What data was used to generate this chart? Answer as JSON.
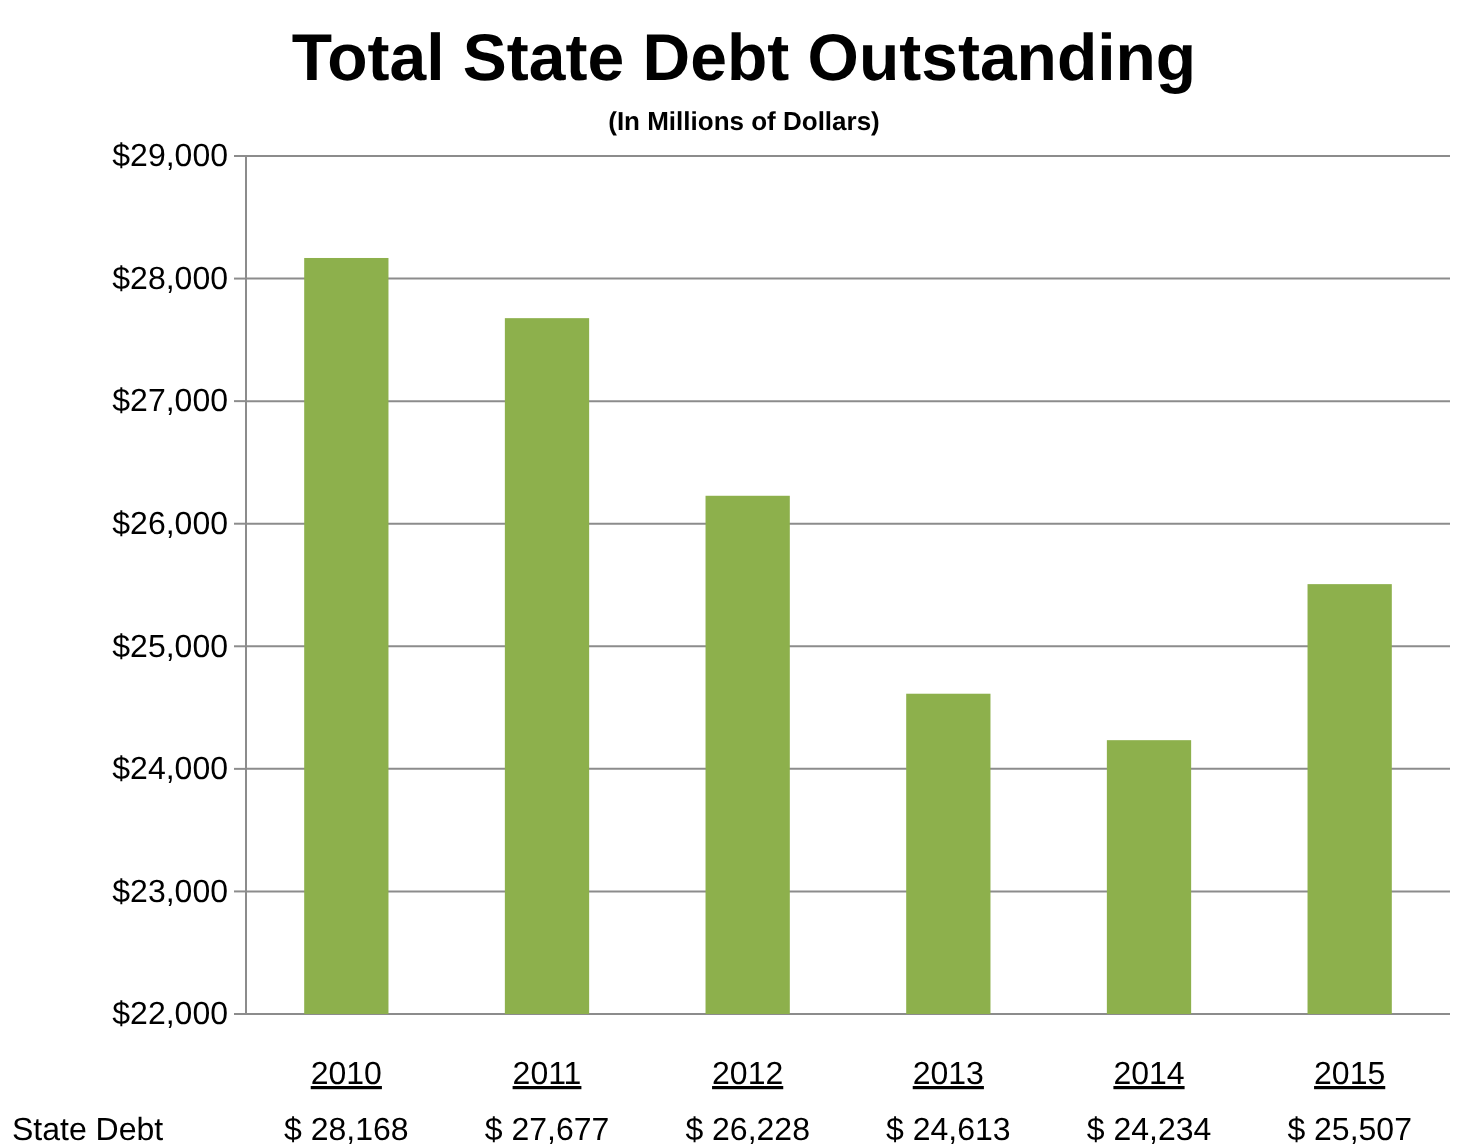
{
  "chart_data": {
    "type": "bar",
    "title": "Total State Debt Outstanding",
    "subtitle": "(In Millions of Dollars)",
    "categories": [
      "2010",
      "2011",
      "2012",
      "2013",
      "2014",
      "2015"
    ],
    "series": [
      {
        "name": "State Debt",
        "color": "#8db04c",
        "values": [
          28168,
          27677,
          26228,
          24613,
          24234,
          25507
        ],
        "value_labels": [
          "$ 28,168",
          "$ 27,677",
          "$ 26,228",
          "$ 24,613",
          "$ 24,234",
          "$ 25,507"
        ]
      }
    ],
    "ylim": [
      22000,
      29000
    ],
    "yticks": [
      {
        "value": 22000,
        "label": "$22,000"
      },
      {
        "value": 23000,
        "label": "$23,000"
      },
      {
        "value": 24000,
        "label": "$24,000"
      },
      {
        "value": 25000,
        "label": "$25,000"
      },
      {
        "value": 26000,
        "label": "$26,000"
      },
      {
        "value": 27000,
        "label": "$27,000"
      },
      {
        "value": 28000,
        "label": "$28,000"
      },
      {
        "value": 29000,
        "label": "$29,000"
      }
    ],
    "grid": "y"
  }
}
